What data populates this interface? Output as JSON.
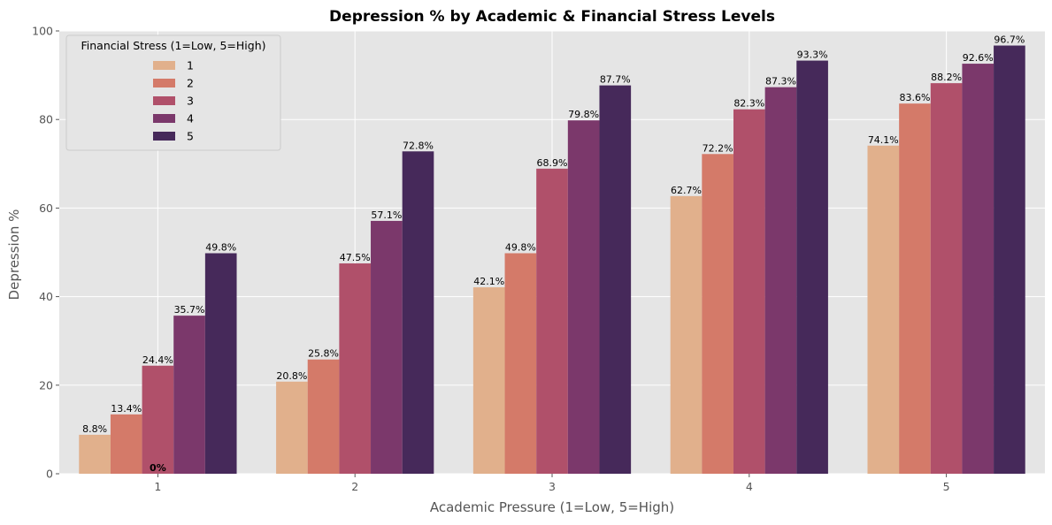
{
  "chart_data": {
    "type": "bar",
    "title": "Depression % by Academic & Financial Stress Levels",
    "xlabel": "Academic Pressure (1=Low, 5=High)",
    "ylabel": "Depression %",
    "categories": [
      "1",
      "2",
      "3",
      "4",
      "5"
    ],
    "ylim": [
      0,
      100
    ],
    "yticks": [
      0,
      20,
      40,
      60,
      80,
      100
    ],
    "grid": true,
    "legend": {
      "title": "Financial Stress (1=Low, 5=High)",
      "placement": "top-left"
    },
    "series": [
      {
        "name": "1",
        "color": "#e1b08c",
        "values": [
          8.8,
          20.8,
          42.1,
          62.7,
          74.1
        ],
        "labels": [
          "8.8%",
          "20.8%",
          "42.1%",
          "62.7%",
          "74.1%"
        ]
      },
      {
        "name": "2",
        "color": "#d47a69",
        "values": [
          13.4,
          25.8,
          49.8,
          72.2,
          83.6
        ],
        "labels": [
          "13.4%",
          "25.8%",
          "49.8%",
          "72.2%",
          "83.6%"
        ]
      },
      {
        "name": "3",
        "color": "#b0506a",
        "values": [
          24.4,
          47.5,
          68.9,
          82.3,
          88.2
        ],
        "labels": [
          "24.4%",
          "47.5%",
          "68.9%",
          "82.3%",
          "88.2%"
        ]
      },
      {
        "name": "4",
        "color": "#7b386b",
        "values": [
          35.7,
          57.1,
          79.8,
          87.3,
          92.6
        ],
        "labels": [
          "35.7%",
          "57.1%",
          "79.8%",
          "87.3%",
          "92.6%"
        ]
      },
      {
        "name": "5",
        "color": "#46295a",
        "values": [
          49.8,
          72.8,
          87.7,
          93.3,
          96.7
        ],
        "labels": [
          "49.8%",
          "72.8%",
          "87.7%",
          "93.3%",
          "96.7%"
        ]
      }
    ],
    "annotations": [
      {
        "text": "0%",
        "category": "1",
        "value": 0
      }
    ],
    "colors": {
      "plot_background": "#e5e5e5",
      "grid": "#ffffff",
      "axis_text": "#555555"
    }
  }
}
